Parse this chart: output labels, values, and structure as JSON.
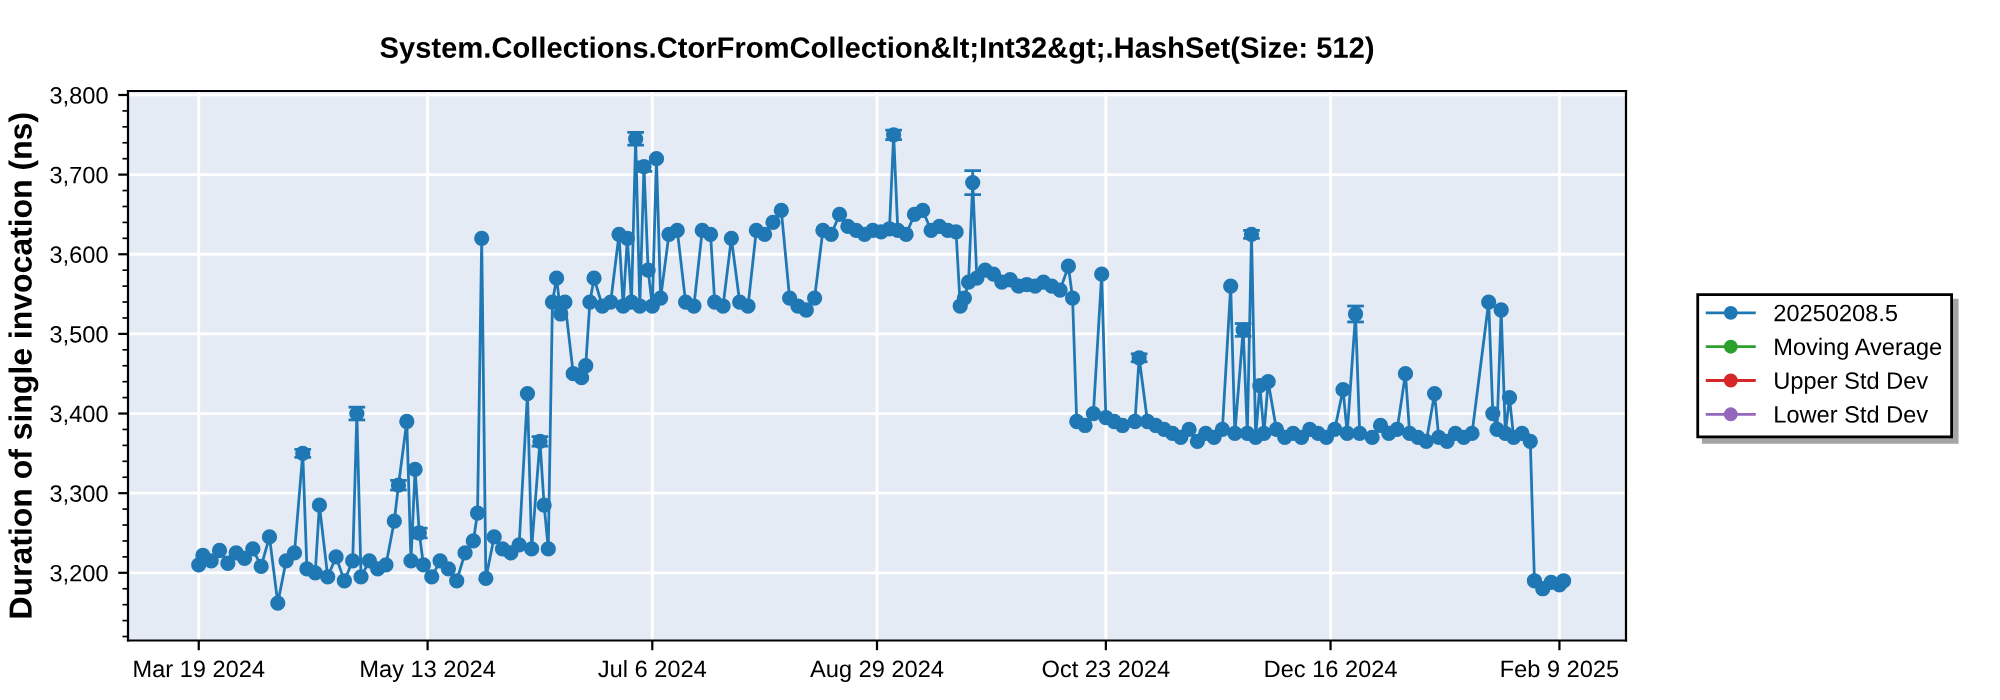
{
  "chart_data": {
    "type": "line",
    "title": "System.Collections.CtorFromCollection&lt;Int32&gt;.HashSet(Size: 512)",
    "ylabel": "Duration of single invocation (ns)",
    "x": [
      "2024-03-19",
      "2024-03-20",
      "2024-03-22",
      "2024-03-24",
      "2024-03-26",
      "2024-03-28",
      "2024-03-30",
      "2024-04-01",
      "2024-04-03",
      "2024-04-05",
      "2024-04-07",
      "2024-04-09",
      "2024-04-11",
      "2024-04-13",
      "2024-04-14",
      "2024-04-16",
      "2024-04-17",
      "2024-04-19",
      "2024-04-21",
      "2024-04-23",
      "2024-04-25",
      "2024-04-26",
      "2024-04-27",
      "2024-04-29",
      "2024-05-01",
      "2024-05-03",
      "2024-05-05",
      "2024-05-06",
      "2024-05-08",
      "2024-05-09",
      "2024-05-10",
      "2024-05-11",
      "2024-05-12",
      "2024-05-14",
      "2024-05-16",
      "2024-05-18",
      "2024-05-20",
      "2024-05-22",
      "2024-05-24",
      "2024-05-25",
      "2024-05-26",
      "2024-05-27",
      "2024-05-29",
      "2024-05-31",
      "2024-06-02",
      "2024-06-04",
      "2024-06-06",
      "2024-06-07",
      "2024-06-09",
      "2024-06-10",
      "2024-06-11",
      "2024-06-12",
      "2024-06-13",
      "2024-06-14",
      "2024-06-15",
      "2024-06-17",
      "2024-06-19",
      "2024-06-20",
      "2024-06-21",
      "2024-06-22",
      "2024-06-24",
      "2024-06-26",
      "2024-06-28",
      "2024-06-29",
      "2024-06-30",
      "2024-07-01",
      "2024-07-02",
      "2024-07-03",
      "2024-07-04",
      "2024-07-05",
      "2024-07-06",
      "2024-07-07",
      "2024-07-08",
      "2024-07-10",
      "2024-07-12",
      "2024-07-14",
      "2024-07-16",
      "2024-07-18",
      "2024-07-20",
      "2024-07-21",
      "2024-07-23",
      "2024-07-25",
      "2024-07-27",
      "2024-07-29",
      "2024-07-31",
      "2024-08-02",
      "2024-08-04",
      "2024-08-06",
      "2024-08-08",
      "2024-08-10",
      "2024-08-12",
      "2024-08-14",
      "2024-08-16",
      "2024-08-18",
      "2024-08-20",
      "2024-08-22",
      "2024-08-24",
      "2024-08-26",
      "2024-08-28",
      "2024-08-30",
      "2024-09-01",
      "2024-09-02",
      "2024-09-03",
      "2024-09-05",
      "2024-09-07",
      "2024-09-09",
      "2024-09-11",
      "2024-09-13",
      "2024-09-15",
      "2024-09-17",
      "2024-09-18",
      "2024-09-19",
      "2024-09-20",
      "2024-09-21",
      "2024-09-22",
      "2024-09-24",
      "2024-09-26",
      "2024-09-28",
      "2024-09-30",
      "2024-10-02",
      "2024-10-04",
      "2024-10-06",
      "2024-10-08",
      "2024-10-10",
      "2024-10-12",
      "2024-10-14",
      "2024-10-15",
      "2024-10-16",
      "2024-10-18",
      "2024-10-20",
      "2024-10-22",
      "2024-10-23",
      "2024-10-25",
      "2024-10-27",
      "2024-10-30",
      "2024-10-31",
      "2024-11-02",
      "2024-11-04",
      "2024-11-06",
      "2024-11-08",
      "2024-11-10",
      "2024-11-12",
      "2024-11-14",
      "2024-11-16",
      "2024-11-18",
      "2024-11-20",
      "2024-11-22",
      "2024-11-23",
      "2024-11-25",
      "2024-11-26",
      "2024-11-27",
      "2024-11-28",
      "2024-11-29",
      "2024-11-30",
      "2024-12-01",
      "2024-12-03",
      "2024-12-05",
      "2024-12-07",
      "2024-12-09",
      "2024-12-11",
      "2024-12-13",
      "2024-12-15",
      "2024-12-17",
      "2024-12-19",
      "2024-12-20",
      "2024-12-22",
      "2024-12-23",
      "2024-12-26",
      "2024-12-28",
      "2024-12-30",
      "2025-01-01",
      "2025-01-03",
      "2025-01-04",
      "2025-01-06",
      "2025-01-08",
      "2025-01-10",
      "2025-01-11",
      "2025-01-13",
      "2025-01-15",
      "2025-01-17",
      "2025-01-19",
      "2025-01-23",
      "2025-01-24",
      "2025-01-25",
      "2025-01-26",
      "2025-01-27",
      "2025-01-28",
      "2025-01-29",
      "2025-01-31",
      "2025-02-02",
      "2025-02-03",
      "2025-02-05",
      "2025-02-07",
      "2025-02-09",
      "2025-02-10"
    ],
    "series": [
      {
        "name": "20250208.5",
        "color": "#1f77b4",
        "values": [
          3210,
          3222,
          3215,
          3228,
          3212,
          3225,
          3218,
          3230,
          3208,
          3245,
          3162,
          3215,
          3225,
          3350,
          3205,
          3200,
          3285,
          3195,
          3220,
          3190,
          3215,
          3400,
          3195,
          3215,
          3205,
          3210,
          3265,
          3310,
          3390,
          3215,
          3330,
          3250,
          3210,
          3195,
          3215,
          3205,
          3190,
          3225,
          3240,
          3275,
          3620,
          3193,
          3245,
          3230,
          3225,
          3235,
          3425,
          3230,
          3365,
          3285,
          3230,
          3540,
          3570,
          3525,
          3540,
          3450,
          3445,
          3460,
          3540,
          3570,
          3535,
          3540,
          3625,
          3535,
          3620,
          3540,
          3745,
          3535,
          3710,
          3580,
          3535,
          3720,
          3545,
          3625,
          3630,
          3540,
          3535,
          3630,
          3625,
          3540,
          3535,
          3620,
          3540,
          3535,
          3630,
          3625,
          3640,
          3655,
          3545,
          3535,
          3530,
          3545,
          3630,
          3625,
          3650,
          3635,
          3630,
          3625,
          3630,
          3628,
          3632,
          3750,
          3630,
          3625,
          3650,
          3655,
          3630,
          3635,
          3630,
          3628,
          3535,
          3545,
          3565,
          3690,
          3570,
          3580,
          3575,
          3565,
          3568,
          3560,
          3562,
          3560,
          3565,
          3560,
          3555,
          3585,
          3545,
          3390,
          3385,
          3400,
          3575,
          3395,
          3390,
          3385,
          3390,
          3470,
          3390,
          3385,
          3380,
          3375,
          3370,
          3380,
          3365,
          3375,
          3370,
          3380,
          3560,
          3375,
          3505,
          3375,
          3625,
          3370,
          3435,
          3375,
          3440,
          3380,
          3370,
          3375,
          3370,
          3380,
          3375,
          3370,
          3380,
          3430,
          3375,
          3525,
          3375,
          3370,
          3385,
          3375,
          3380,
          3450,
          3375,
          3370,
          3365,
          3425,
          3370,
          3365,
          3375,
          3370,
          3375,
          3540,
          3400,
          3380,
          3530,
          3375,
          3420,
          3370,
          3375,
          3365,
          3190,
          3180,
          3188,
          3185,
          3190
        ],
        "errors": [
          null,
          null,
          null,
          null,
          null,
          null,
          null,
          null,
          null,
          null,
          null,
          null,
          null,
          5,
          null,
          null,
          null,
          null,
          null,
          null,
          null,
          8,
          null,
          null,
          null,
          null,
          null,
          6,
          null,
          null,
          null,
          6,
          null,
          null,
          null,
          null,
          null,
          null,
          null,
          null,
          null,
          null,
          null,
          null,
          null,
          null,
          null,
          null,
          6,
          null,
          null,
          null,
          null,
          null,
          null,
          null,
          null,
          null,
          null,
          null,
          null,
          null,
          null,
          null,
          null,
          null,
          8,
          null,
          6,
          null,
          null,
          null,
          null,
          null,
          null,
          null,
          null,
          null,
          null,
          null,
          null,
          null,
          null,
          null,
          null,
          null,
          null,
          null,
          null,
          null,
          null,
          null,
          null,
          null,
          null,
          null,
          null,
          null,
          null,
          null,
          null,
          6,
          null,
          null,
          null,
          null,
          null,
          null,
          null,
          null,
          null,
          null,
          null,
          15,
          null,
          null,
          null,
          null,
          null,
          null,
          null,
          null,
          null,
          null,
          null,
          null,
          null,
          null,
          null,
          null,
          null,
          null,
          null,
          null,
          null,
          5,
          null,
          null,
          null,
          null,
          null,
          null,
          null,
          null,
          null,
          null,
          null,
          null,
          8,
          null,
          5,
          null,
          null,
          null,
          null,
          null,
          null,
          null,
          null,
          null,
          null,
          null,
          null,
          null,
          null,
          10,
          null,
          null,
          null,
          null,
          null,
          null,
          null,
          null,
          null,
          null,
          null,
          null,
          null,
          null,
          null,
          null,
          null,
          null,
          null,
          null,
          null,
          null,
          null,
          null,
          null,
          null,
          null,
          null,
          null
        ]
      },
      {
        "name": "Moving Average",
        "color": "#2ca02c",
        "values": [
          null,
          null,
          null,
          null,
          null,
          null,
          null,
          null,
          null,
          null,
          null,
          null,
          null,
          null,
          null,
          null,
          null,
          null,
          null,
          null,
          null,
          null,
          null,
          null,
          null,
          null,
          null,
          null,
          null,
          null,
          null,
          null,
          null,
          null,
          null,
          null,
          null,
          null,
          null,
          null,
          null,
          null,
          null,
          null,
          null,
          null,
          null,
          null,
          null,
          null,
          null,
          null,
          null,
          null,
          null,
          null,
          null,
          null,
          null,
          null,
          null,
          null,
          null,
          null,
          null,
          null,
          null,
          null,
          null,
          null,
          null,
          null,
          null,
          null,
          null,
          null,
          null,
          null,
          null,
          null,
          null,
          null,
          null,
          null,
          null,
          null,
          null,
          null,
          null,
          null,
          null,
          null,
          null,
          null,
          null,
          null,
          null,
          null,
          null,
          null,
          null,
          null,
          null,
          null,
          null,
          null,
          null,
          null,
          null,
          null,
          null,
          null,
          null,
          null,
          null,
          null,
          null,
          null,
          null,
          null,
          null,
          null,
          null,
          null,
          null,
          null,
          null,
          null,
          null,
          null,
          null,
          null,
          null,
          null,
          null,
          null,
          null,
          null,
          null,
          null,
          null,
          null,
          null,
          null,
          null,
          null,
          null,
          null,
          null,
          null,
          null,
          null,
          null,
          null,
          null,
          null,
          null,
          null,
          null,
          null,
          null,
          null,
          null,
          null,
          null,
          null,
          null,
          null,
          null,
          null,
          null,
          null,
          null,
          null,
          null,
          null,
          null,
          null,
          null,
          null,
          null,
          null,
          null,
          null,
          null,
          null,
          null,
          null,
          null,
          null,
          null,
          null,
          null,
          null,
          null
        ]
      },
      {
        "name": "Upper Std Dev",
        "color": "#d62728",
        "values": [
          null,
          null,
          null,
          null,
          null,
          null,
          null,
          null,
          null,
          null,
          null,
          null,
          null,
          null,
          null,
          null,
          null,
          null,
          null,
          null,
          null,
          null,
          null,
          null,
          null,
          null,
          null,
          null,
          null,
          null,
          null,
          null,
          null,
          null,
          null,
          null,
          null,
          null,
          null,
          null,
          null,
          null,
          null,
          null,
          null,
          null,
          null,
          null,
          null,
          null,
          null,
          null,
          null,
          null,
          null,
          null,
          null,
          null,
          null,
          null,
          null,
          null,
          null,
          null,
          null,
          null,
          null,
          null,
          null,
          null,
          null,
          null,
          null,
          null,
          null,
          null,
          null,
          null,
          null,
          null,
          null,
          null,
          null,
          null,
          null,
          null,
          null,
          null,
          null,
          null,
          null,
          null,
          null,
          null,
          null,
          null,
          null,
          null,
          null,
          null,
          null,
          null,
          null,
          null,
          null,
          null,
          null,
          null,
          null,
          null,
          null,
          null,
          null,
          null,
          null,
          null,
          null,
          null,
          null,
          null,
          null,
          null,
          null,
          null,
          null,
          null,
          null,
          null,
          null,
          null,
          null,
          null,
          null,
          null,
          null,
          null,
          null,
          null,
          null,
          null,
          null,
          null,
          null,
          null,
          null,
          null,
          null,
          null,
          null,
          null,
          null,
          null,
          null,
          null,
          null,
          null,
          null,
          null,
          null,
          null,
          null,
          null,
          null,
          null,
          null,
          null,
          null,
          null,
          null,
          null,
          null,
          null,
          null,
          null,
          null,
          null,
          null,
          null,
          null,
          null,
          null,
          null,
          null,
          null,
          null,
          null,
          null,
          null,
          null,
          null,
          null,
          null,
          null,
          null,
          null
        ]
      },
      {
        "name": "Lower Std Dev",
        "color": "#9467bd",
        "values": [
          null,
          null,
          null,
          null,
          null,
          null,
          null,
          null,
          null,
          null,
          null,
          null,
          null,
          null,
          null,
          null,
          null,
          null,
          null,
          null,
          null,
          null,
          null,
          null,
          null,
          null,
          null,
          null,
          null,
          null,
          null,
          null,
          null,
          null,
          null,
          null,
          null,
          null,
          null,
          null,
          null,
          null,
          null,
          null,
          null,
          null,
          null,
          null,
          null,
          null,
          null,
          null,
          null,
          null,
          null,
          null,
          null,
          null,
          null,
          null,
          null,
          null,
          null,
          null,
          null,
          null,
          null,
          null,
          null,
          null,
          null,
          null,
          null,
          null,
          null,
          null,
          null,
          null,
          null,
          null,
          null,
          null,
          null,
          null,
          null,
          null,
          null,
          null,
          null,
          null,
          null,
          null,
          null,
          null,
          null,
          null,
          null,
          null,
          null,
          null,
          null,
          null,
          null,
          null,
          null,
          null,
          null,
          null,
          null,
          null,
          null,
          null,
          null,
          null,
          null,
          null,
          null,
          null,
          null,
          null,
          null,
          null,
          null,
          null,
          null,
          null,
          null,
          null,
          null,
          null,
          null,
          null,
          null,
          null,
          null,
          null,
          null,
          null,
          null,
          null,
          null,
          null,
          null,
          null,
          null,
          null,
          null,
          null,
          null,
          null,
          null,
          null,
          null,
          null,
          null,
          null,
          null,
          null,
          null,
          null,
          null,
          null,
          null,
          null,
          null,
          null,
          null,
          null,
          null,
          null,
          null,
          null,
          null,
          null,
          null,
          null,
          null,
          null,
          null,
          null,
          null,
          null,
          null,
          null,
          null,
          null,
          null,
          null,
          null,
          null,
          null,
          null,
          null,
          null,
          null
        ]
      }
    ],
    "xlim": [
      "2024-03-02",
      "2025-02-25"
    ],
    "xticks": [
      {
        "value": "2024-03-19",
        "label": "Mar 19 2024"
      },
      {
        "value": "2024-05-13",
        "label": "May 13 2024"
      },
      {
        "value": "2024-07-06",
        "label": "Jul 6 2024"
      },
      {
        "value": "2024-08-29",
        "label": "Aug 29 2024"
      },
      {
        "value": "2024-10-23",
        "label": "Oct 23 2024"
      },
      {
        "value": "2024-12-16",
        "label": "Dec 16 2024"
      },
      {
        "value": "2025-02-09",
        "label": "Feb 9 2025"
      }
    ],
    "ylim": [
      3115,
      3805
    ],
    "yticks": [
      {
        "value": 3200,
        "label": "3,200"
      },
      {
        "value": 3300,
        "label": "3,300"
      },
      {
        "value": 3400,
        "label": "3,400"
      },
      {
        "value": 3500,
        "label": "3,500"
      },
      {
        "value": 3600,
        "label": "3,600"
      },
      {
        "value": 3700,
        "label": "3,700"
      },
      {
        "value": 3800,
        "label": "3,800"
      }
    ],
    "grid": true,
    "legend": "right",
    "marker": "circle",
    "line_style": "solid"
  }
}
